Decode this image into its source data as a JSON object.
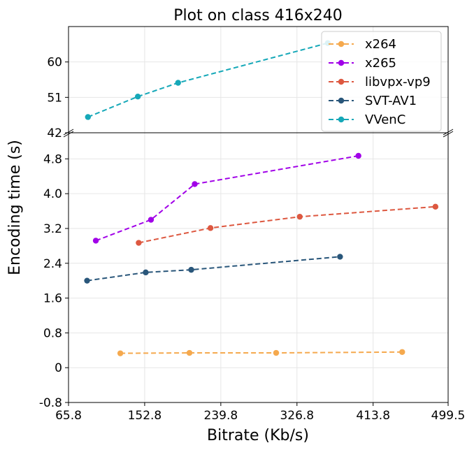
{
  "chart_data": {
    "type": "line",
    "title": "Plot on class 416x240",
    "xlabel": "Bitrate (Kb/s)",
    "ylabel": "Encoding time (s)",
    "xlim": [
      65.8,
      499.5
    ],
    "x_ticks": [
      "65.8",
      "152.8",
      "239.8",
      "326.8",
      "413.8",
      "499.5"
    ],
    "x_tick_values": [
      65.8,
      152.8,
      239.8,
      326.8,
      413.8,
      499.5
    ],
    "broken_y_axis": true,
    "upper_panel": {
      "ylim": [
        42,
        69
      ],
      "y_ticks": [
        "42",
        "51",
        "60"
      ],
      "y_tick_values": [
        42,
        51,
        60
      ]
    },
    "lower_panel": {
      "ylim": [
        -0.8,
        5.4
      ],
      "y_ticks": [
        "-0.8",
        "0",
        "0.8",
        "1.6",
        "2.4",
        "3.2",
        "4.0",
        "4.8"
      ],
      "y_tick_values": [
        -0.8,
        0,
        0.8,
        1.6,
        2.4,
        3.2,
        4.0,
        4.8
      ]
    },
    "grid": true,
    "legend_position": "top-right",
    "series": [
      {
        "name": "x264",
        "color": "#f5a94e",
        "panel": "lower",
        "x": [
          125,
          204,
          303,
          447
        ],
        "y": [
          0.33,
          0.34,
          0.34,
          0.36
        ]
      },
      {
        "name": "x265",
        "color": "#a100e8",
        "panel": "lower",
        "x": [
          97,
          160,
          210,
          397
        ],
        "y": [
          2.92,
          3.4,
          4.22,
          4.87
        ]
      },
      {
        "name": "libvpx-vp9",
        "color": "#dd5840",
        "panel": "lower",
        "x": [
          146,
          228,
          330,
          485
        ],
        "y": [
          2.87,
          3.21,
          3.47,
          3.7
        ]
      },
      {
        "name": "SVT-AV1",
        "color": "#29567a",
        "panel": "lower",
        "x": [
          87,
          154,
          206,
          376
        ],
        "y": [
          2.0,
          2.19,
          2.25,
          2.55
        ]
      },
      {
        "name": "VVenC",
        "color": "#15a8b8",
        "panel": "upper",
        "x": [
          88,
          145,
          191,
          362
        ],
        "y": [
          46.0,
          51.2,
          54.7,
          64.8
        ]
      }
    ]
  }
}
